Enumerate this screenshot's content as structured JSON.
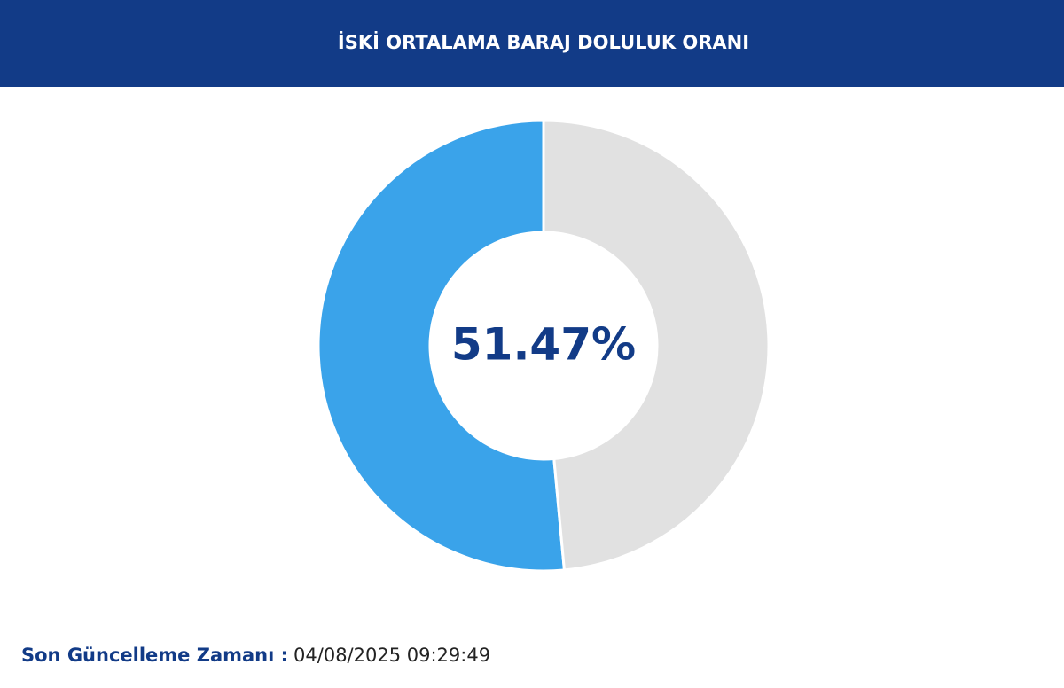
{
  "chart_data": {
    "type": "donut",
    "title": "İSKİ ORTALAMA BARAJ DOLULUK ORANI",
    "values": [
      51.47,
      48.53
    ],
    "value_labels": [
      "51.47%",
      null
    ],
    "colors": [
      "#3aa3ea",
      "#e1e1e1"
    ]
  },
  "footer": {
    "label": "Son Güncelleme Zamanı :",
    "value": "04/08/2025 09:29:49"
  }
}
